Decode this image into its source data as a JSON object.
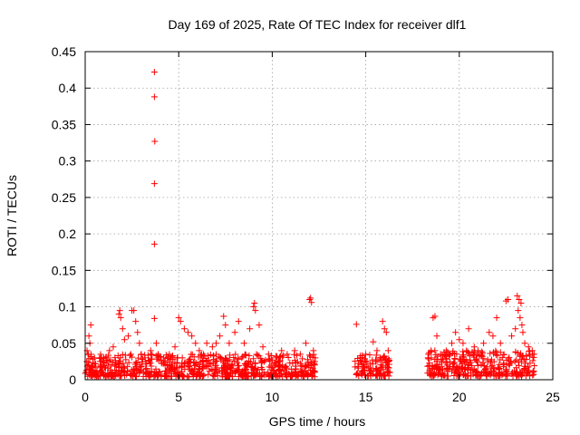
{
  "chart_data": {
    "type": "scatter",
    "title": "Day 169 of 2025, Rate Of TEC Index for receiver dlf1",
    "xlabel": "GPS time / hours",
    "ylabel": "ROTI / TECUs",
    "xlim": [
      0,
      25
    ],
    "ylim": [
      0,
      0.45
    ],
    "xticks": [
      0,
      5,
      10,
      15,
      20,
      25
    ],
    "xtick_labels": [
      "0",
      "5",
      "10",
      "15",
      "20",
      "25"
    ],
    "yticks": [
      0,
      0.05,
      0.1,
      0.15,
      0.2,
      0.25,
      0.3,
      0.35,
      0.4,
      0.45
    ],
    "ytick_labels": [
      "0",
      "0.05",
      "0.1",
      "0.15",
      "0.2",
      "0.25",
      "0.3",
      "0.35",
      "0.4",
      "0.45"
    ],
    "grid": true,
    "marker": "plus",
    "color": "#ff0000",
    "series": [
      {
        "name": "ROTI",
        "points": [
          [
            3.7,
            0.422
          ],
          [
            3.7,
            0.388
          ],
          [
            3.72,
            0.327
          ],
          [
            3.7,
            0.269
          ],
          [
            3.7,
            0.186
          ],
          [
            3.7,
            0.084
          ],
          [
            0.1,
            0.04
          ],
          [
            0.2,
            0.06
          ],
          [
            0.3,
            0.075
          ],
          [
            0.25,
            0.05
          ],
          [
            0.15,
            0.035
          ],
          [
            0.5,
            0.03
          ],
          [
            0.8,
            0.025
          ],
          [
            1.0,
            0.03
          ],
          [
            1.3,
            0.04
          ],
          [
            1.5,
            0.045
          ],
          [
            1.8,
            0.09
          ],
          [
            1.85,
            0.095
          ],
          [
            1.9,
            0.085
          ],
          [
            2.0,
            0.07
          ],
          [
            2.1,
            0.055
          ],
          [
            2.3,
            0.06
          ],
          [
            2.5,
            0.095
          ],
          [
            2.6,
            0.095
          ],
          [
            2.7,
            0.08
          ],
          [
            2.8,
            0.065
          ],
          [
            2.9,
            0.05
          ],
          [
            3.0,
            0.035
          ],
          [
            3.2,
            0.03
          ],
          [
            3.5,
            0.04
          ],
          [
            3.8,
            0.05
          ],
          [
            3.9,
            0.035
          ],
          [
            4.2,
            0.03
          ],
          [
            4.5,
            0.035
          ],
          [
            4.8,
            0.045
          ],
          [
            5.0,
            0.085
          ],
          [
            5.1,
            0.08
          ],
          [
            5.3,
            0.07
          ],
          [
            5.5,
            0.065
          ],
          [
            5.7,
            0.06
          ],
          [
            5.9,
            0.05
          ],
          [
            6.1,
            0.04
          ],
          [
            6.5,
            0.05
          ],
          [
            6.8,
            0.045
          ],
          [
            7.0,
            0.05
          ],
          [
            7.2,
            0.06
          ],
          [
            7.4,
            0.087
          ],
          [
            7.5,
            0.075
          ],
          [
            7.7,
            0.05
          ],
          [
            8.0,
            0.065
          ],
          [
            8.2,
            0.08
          ],
          [
            8.5,
            0.05
          ],
          [
            8.8,
            0.07
          ],
          [
            9.0,
            0.1
          ],
          [
            9.05,
            0.105
          ],
          [
            9.1,
            0.095
          ],
          [
            9.3,
            0.075
          ],
          [
            9.5,
            0.045
          ],
          [
            9.8,
            0.035
          ],
          [
            10.2,
            0.03
          ],
          [
            10.5,
            0.04
          ],
          [
            10.8,
            0.035
          ],
          [
            11.2,
            0.04
          ],
          [
            11.5,
            0.035
          ],
          [
            11.8,
            0.05
          ],
          [
            12.0,
            0.11
          ],
          [
            12.05,
            0.112
          ],
          [
            12.1,
            0.106
          ],
          [
            12.2,
            0.04
          ],
          [
            12.3,
            0.03
          ],
          [
            14.5,
            0.076
          ],
          [
            14.7,
            0.03
          ],
          [
            15.0,
            0.035
          ],
          [
            15.4,
            0.052
          ],
          [
            15.6,
            0.04
          ],
          [
            15.9,
            0.08
          ],
          [
            16.0,
            0.07
          ],
          [
            16.1,
            0.065
          ],
          [
            16.2,
            0.04
          ],
          [
            18.5,
            0.03
          ],
          [
            18.6,
            0.085
          ],
          [
            18.7,
            0.087
          ],
          [
            18.8,
            0.06
          ],
          [
            19.0,
            0.035
          ],
          [
            19.3,
            0.04
          ],
          [
            19.6,
            0.05
          ],
          [
            19.8,
            0.065
          ],
          [
            20.0,
            0.055
          ],
          [
            20.2,
            0.05
          ],
          [
            20.5,
            0.07
          ],
          [
            20.8,
            0.045
          ],
          [
            21.0,
            0.04
          ],
          [
            21.3,
            0.05
          ],
          [
            21.6,
            0.065
          ],
          [
            21.8,
            0.06
          ],
          [
            22.0,
            0.085
          ],
          [
            22.2,
            0.05
          ],
          [
            22.5,
            0.108
          ],
          [
            22.6,
            0.11
          ],
          [
            22.8,
            0.06
          ],
          [
            23.0,
            0.07
          ],
          [
            23.1,
            0.115
          ],
          [
            23.2,
            0.11
          ],
          [
            23.3,
            0.105
          ],
          [
            23.15,
            0.095
          ],
          [
            23.25,
            0.085
          ],
          [
            23.35,
            0.075
          ],
          [
            23.4,
            0.065
          ],
          [
            23.5,
            0.05
          ],
          [
            23.7,
            0.045
          ],
          [
            23.9,
            0.04
          ],
          [
            24.0,
            0.035
          ]
        ]
      }
    ],
    "dense_bands": [
      {
        "x_start": 0.0,
        "x_end": 12.3,
        "y_low": 0.004,
        "y_high": 0.035
      },
      {
        "x_start": 14.4,
        "x_end": 16.3,
        "y_low": 0.005,
        "y_high": 0.035
      },
      {
        "x_start": 18.3,
        "x_end": 24.05,
        "y_low": 0.005,
        "y_high": 0.04
      }
    ]
  }
}
